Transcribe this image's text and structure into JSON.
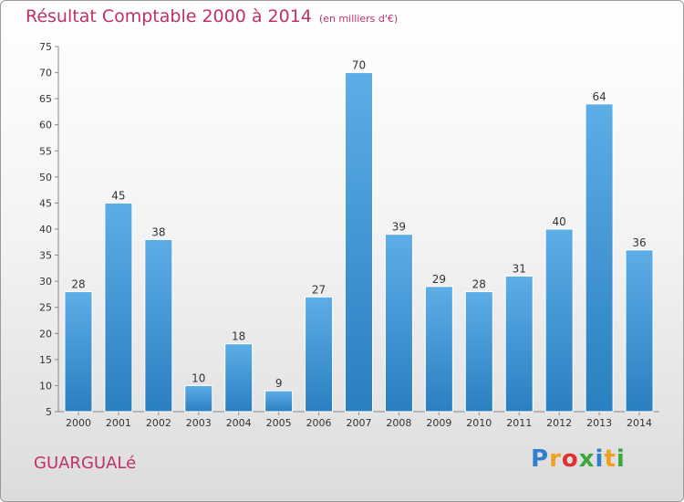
{
  "chart_data": {
    "type": "bar",
    "title": "Résultat Comptable 2000 à 2014",
    "subtitle": "(en milliers d'€)",
    "categories": [
      "2000",
      "2001",
      "2002",
      "2003",
      "2004",
      "2005",
      "2006",
      "2007",
      "2008",
      "2009",
      "2010",
      "2011",
      "2012",
      "2013",
      "2014"
    ],
    "values": [
      28,
      45,
      38,
      10,
      18,
      9,
      27,
      70,
      39,
      29,
      28,
      31,
      40,
      64,
      36
    ],
    "ylim": [
      5,
      75
    ],
    "yticks": [
      5,
      10,
      15,
      20,
      25,
      30,
      35,
      40,
      45,
      50,
      55,
      60,
      65,
      70,
      75
    ],
    "grid": false,
    "xlabel": "",
    "ylabel": ""
  },
  "footer": {
    "town": "GUARGUALé",
    "logo_letters": [
      "P",
      "r",
      "o",
      "x",
      "i",
      "t",
      "i"
    ]
  },
  "colors": {
    "title": "#c0306a",
    "bar_top": "#5dade6",
    "bar_bottom": "#2a7fc0",
    "logo": [
      "#2f7fd0",
      "#f0a020",
      "#e03030",
      "#3aa83a",
      "#2f7fd0",
      "#f0a020",
      "#3aa83a"
    ]
  }
}
